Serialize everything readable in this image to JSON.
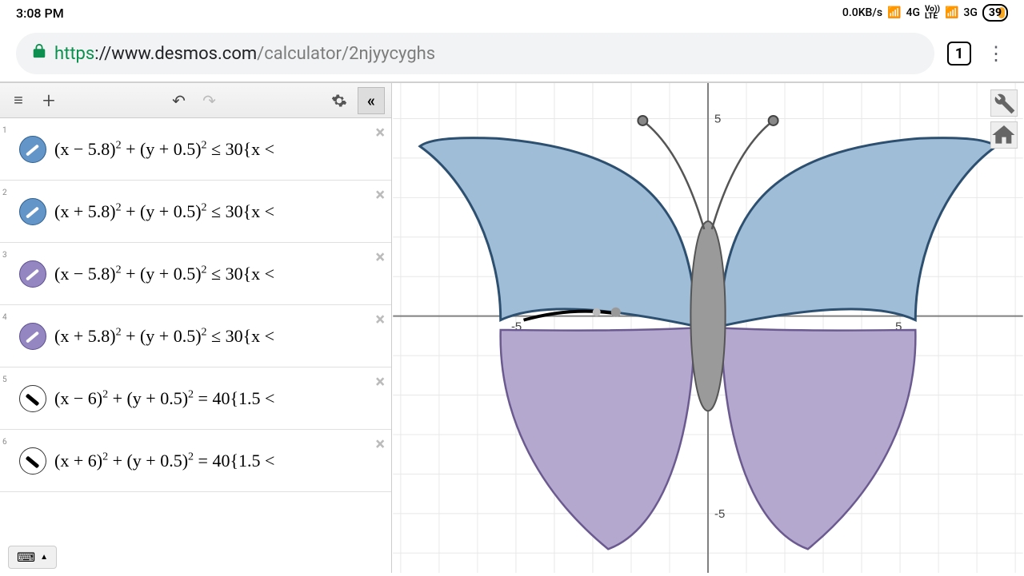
{
  "status": {
    "time": "3:08 PM",
    "speed": "0.0KB/s",
    "net1": "4G",
    "volte": "Vo))\nLTE",
    "net2": "3G",
    "battery": "39"
  },
  "browser": {
    "protocol": "https",
    "host": "://www.desmos.com",
    "path": "/calculator/2njyycyghs",
    "tab_count": "1"
  },
  "expressions": [
    {
      "n": "1",
      "color": "fill-blue",
      "latex": "(x − 5.8)² + (y + 0.5)² ≤ 30{x <"
    },
    {
      "n": "2",
      "color": "fill-blue",
      "latex": "(x + 5.8)² + (y + 0.5)² ≤ 30{x <"
    },
    {
      "n": "3",
      "color": "fill-purple",
      "latex": "(x − 5.8)² + (y + 0.5)² ≤ 30{x <"
    },
    {
      "n": "4",
      "color": "fill-purple",
      "latex": "(x + 5.8)² + (y + 0.5)² ≤ 30{x <"
    },
    {
      "n": "5",
      "color": "stroke-only",
      "latex": "(x − 6)² + (y + 0.5)² = 40{1.5 <"
    },
    {
      "n": "6",
      "color": "stroke-only",
      "latex": "(x + 6)² + (y + 0.5)² = 40{1.5 <"
    }
  ],
  "graph": {
    "xlim": [
      -8.2,
      8.2
    ],
    "ylim": [
      -6.5,
      5.9
    ],
    "grid_color": "#e8e8e8",
    "axis_color": "#808080",
    "ticks_x": [
      -5,
      5
    ],
    "ticks_y": [
      -5,
      5
    ],
    "upper_wing_fill": "#a0bdd7",
    "upper_wing_stroke": "#2d5070",
    "lower_wing_fill": "#b5a8ce",
    "lower_wing_stroke": "#6a5a8f",
    "body_fill": "#9a9a9a",
    "body_stroke": "#555555",
    "antenna_color": "#555555",
    "point_fill": "#888888"
  }
}
